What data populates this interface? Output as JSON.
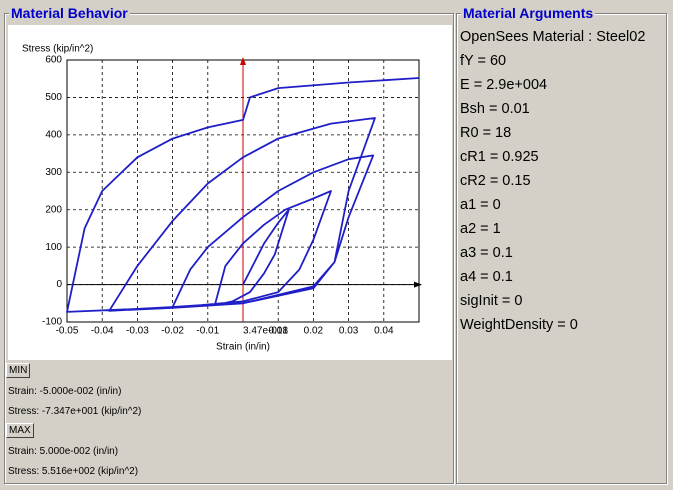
{
  "chart_data": {
    "type": "line",
    "x_label": "Strain (in/in)",
    "y_label": "Stress (kip/in^2)",
    "xlim": [
      -0.05,
      0.05
    ],
    "ylim": [
      -100,
      600
    ],
    "xticks": [
      -0.05,
      -0.04,
      -0.03,
      -0.02,
      -0.01,
      {
        "value": 3.47e-18,
        "label": "3.47e-018"
      },
      0.01,
      0.02,
      0.03,
      0.04
    ],
    "yticks": [
      -100,
      0,
      100,
      200,
      300,
      400,
      500,
      600
    ],
    "grid": true,
    "color": "#1f1fc8",
    "x": [
      0,
      0.003,
      0.006,
      0.01,
      0.013,
      0.009,
      0.006,
      0.002,
      -0.003,
      -0.008,
      -0.005,
      0,
      0.006,
      0.012,
      0.02,
      0.025,
      0.02,
      0.016,
      0.01,
      0,
      -0.012,
      -0.02,
      -0.015,
      -0.01,
      0,
      0.01,
      0.02,
      0.03,
      0.037,
      0.03,
      0.026,
      0.02,
      0,
      -0.02,
      -0.038,
      -0.03,
      -0.02,
      -0.01,
      0,
      0.01,
      0.025,
      0.0375,
      0.03,
      0.026,
      0.02,
      0,
      -0.03,
      -0.05,
      -0.045,
      -0.04,
      -0.03,
      -0.02,
      -0.01,
      0,
      0.002,
      0.01,
      0.03,
      0.05
    ],
    "values": [
      0,
      55,
      110,
      165,
      200,
      80,
      30,
      -20,
      -45,
      -55,
      50,
      110,
      160,
      200,
      230,
      250,
      120,
      40,
      -20,
      -45,
      -55,
      -60,
      40,
      100,
      180,
      250,
      300,
      335,
      345,
      180,
      60,
      -10,
      -50,
      -62,
      -70,
      50,
      170,
      270,
      340,
      390,
      430,
      445,
      250,
      60,
      -5,
      -50,
      -65,
      -73,
      150,
      250,
      340,
      390,
      420,
      440,
      500,
      525,
      540,
      552
    ]
  },
  "behavior": {
    "title": "Material Behavior",
    "min": {
      "button": "MIN",
      "strain": "Strain: -5.000e-002 (in/in)",
      "stress": "Stress: -7.347e+001 (kip/in^2)"
    },
    "max": {
      "button": "MAX",
      "strain": "Strain: 5.000e-002 (in/in)",
      "stress": "Stress: 5.516e+002 (kip/in^2)"
    }
  },
  "arguments": {
    "title": "Material Arguments",
    "items": [
      "OpenSees Material : Steel02",
      "fY = 60",
      "E = 2.9e+004",
      "Bsh = 0.01",
      "R0 = 18",
      "cR1 = 0.925",
      "cR2 = 0.15",
      "a1 = 0",
      "a2 = 1",
      "a3 = 0.1",
      "a4 = 0.1",
      "sigInit = 0",
      "WeightDensity = 0"
    ]
  }
}
